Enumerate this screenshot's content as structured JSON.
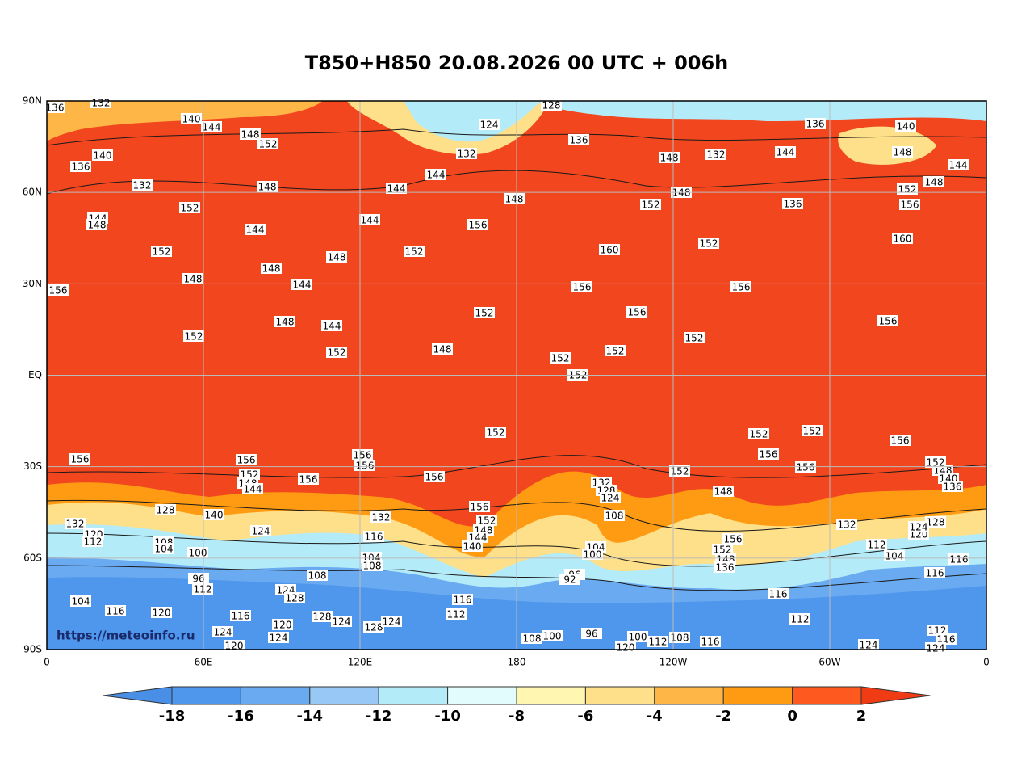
{
  "title": "T850+H850 20.08.2026 00 UTC + 006h",
  "map": {
    "lat_labels": [
      "90N",
      "60N",
      "30N",
      "EQ",
      "30S",
      "60S",
      "90S"
    ],
    "lon_labels": [
      "0",
      "60E",
      "120E",
      "180",
      "120W",
      "60W",
      "0"
    ],
    "watermark": "https://meteoinfo.ru",
    "colorbar": {
      "ticks": [
        -18,
        -16,
        -14,
        -12,
        -10,
        -8,
        -6,
        -4,
        -2,
        0,
        2
      ],
      "colors": [
        "#4a8fe6",
        "#4f97ec",
        "#6aaaf0",
        "#98c9f6",
        "#b4ebf8",
        "#e2fcfd",
        "#fff6b2",
        "#fee08a",
        "#feb747",
        "#fe9b12",
        "#fe5a20",
        "#f03c14"
      ]
    },
    "contour_labels": [
      136,
      132,
      140,
      144,
      148,
      152,
      140,
      136,
      132,
      148,
      152,
      144,
      148,
      144,
      152,
      148,
      148,
      144,
      148,
      156,
      152,
      148,
      144,
      152,
      144,
      144,
      144,
      128,
      124,
      132,
      136,
      148,
      156,
      152,
      160,
      156,
      152,
      156,
      148,
      152,
      152,
      152,
      152,
      152,
      152,
      148,
      148,
      132,
      144,
      136,
      140,
      148,
      144,
      148,
      152,
      156,
      160,
      136,
      156,
      156,
      152,
      152,
      152,
      156,
      156,
      156,
      152,
      148,
      156,
      156,
      152,
      148,
      144,
      156,
      156,
      156,
      156,
      132,
      120,
      112,
      128,
      140,
      124,
      108,
      104,
      100,
      96,
      112,
      104,
      116,
      120,
      124,
      128,
      116,
      120,
      128,
      124,
      128,
      124,
      124,
      120,
      124,
      132,
      116,
      104,
      108,
      108,
      156,
      152,
      148,
      144,
      140,
      116,
      112,
      132,
      128,
      124,
      108,
      104,
      100,
      96,
      92,
      108,
      100,
      96,
      100,
      112,
      108,
      116,
      120,
      124,
      156,
      152,
      148,
      136,
      132,
      112,
      104,
      116,
      116,
      120,
      128,
      124,
      116,
      112,
      112,
      116,
      124,
      148,
      152,
      140,
      136
    ]
  }
}
